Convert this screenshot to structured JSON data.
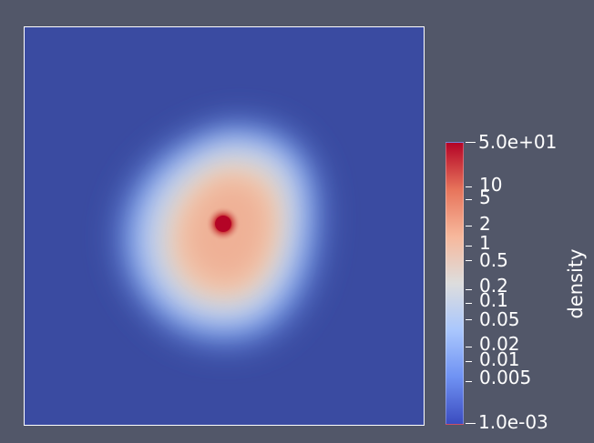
{
  "field": {
    "colorbar_title": "density",
    "colormap": "cool-to-warm",
    "scale": "log",
    "range": [
      0.001,
      50
    ],
    "range_labels": {
      "max": "5.0e+01",
      "min": "1.0e-03"
    },
    "tick_labels": [
      "10",
      "5",
      "2",
      "1",
      "0.5",
      "0.2",
      "0.1",
      "0.05",
      "0.02",
      "0.01",
      "0.005"
    ],
    "colormap_stops": [
      "#3b4cc0",
      "#6f92f3",
      "#aac7fd",
      "#dddddd",
      "#f7b89c",
      "#e7745b",
      "#b40426"
    ],
    "background_color": "#525769",
    "frame_color": "#ffffff"
  }
}
